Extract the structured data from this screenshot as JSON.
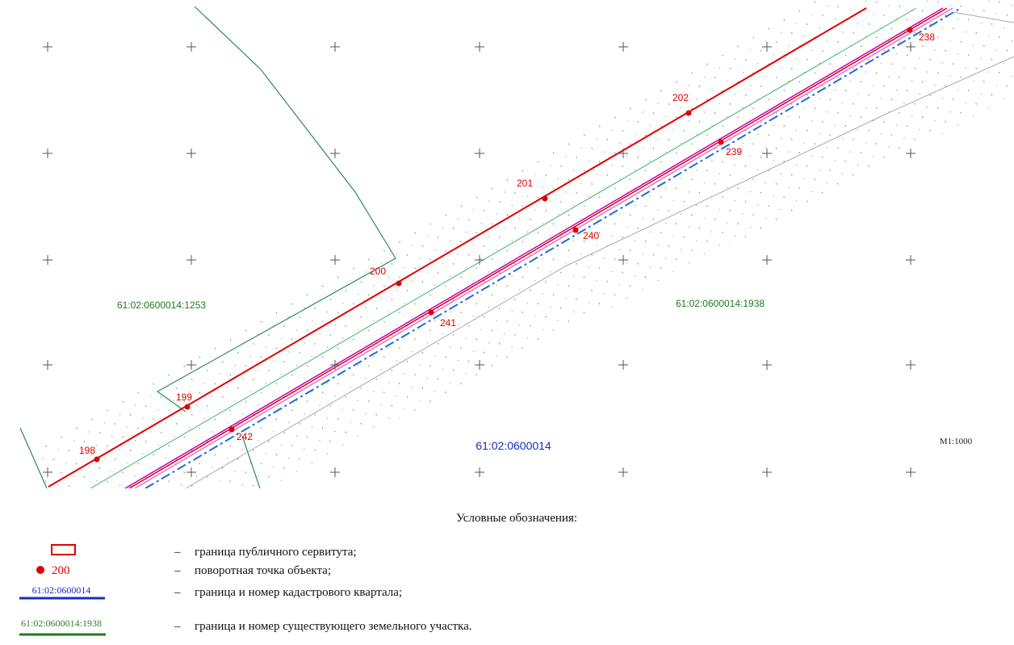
{
  "map": {
    "points": [
      "198",
      "199",
      "200",
      "201",
      "202",
      "238",
      "239",
      "240",
      "241",
      "242"
    ],
    "parcels": [
      "61:02:0600014:1253",
      "61:02:0600014:1938"
    ],
    "quarter": "61:02:0600014",
    "scale": "M1:1000"
  },
  "legend": {
    "title": "Условные обозначения:",
    "separator": "–",
    "point_sample": "200",
    "quarter_sample": "61:02:0600014",
    "parcel_sample": "61:02:0600014:1938",
    "items": [
      "граница публичного сервитута;",
      "поворотная точка объекта;",
      "граница и номер кадастрового квартала;",
      "граница и номер существующего земельного участка."
    ]
  }
}
